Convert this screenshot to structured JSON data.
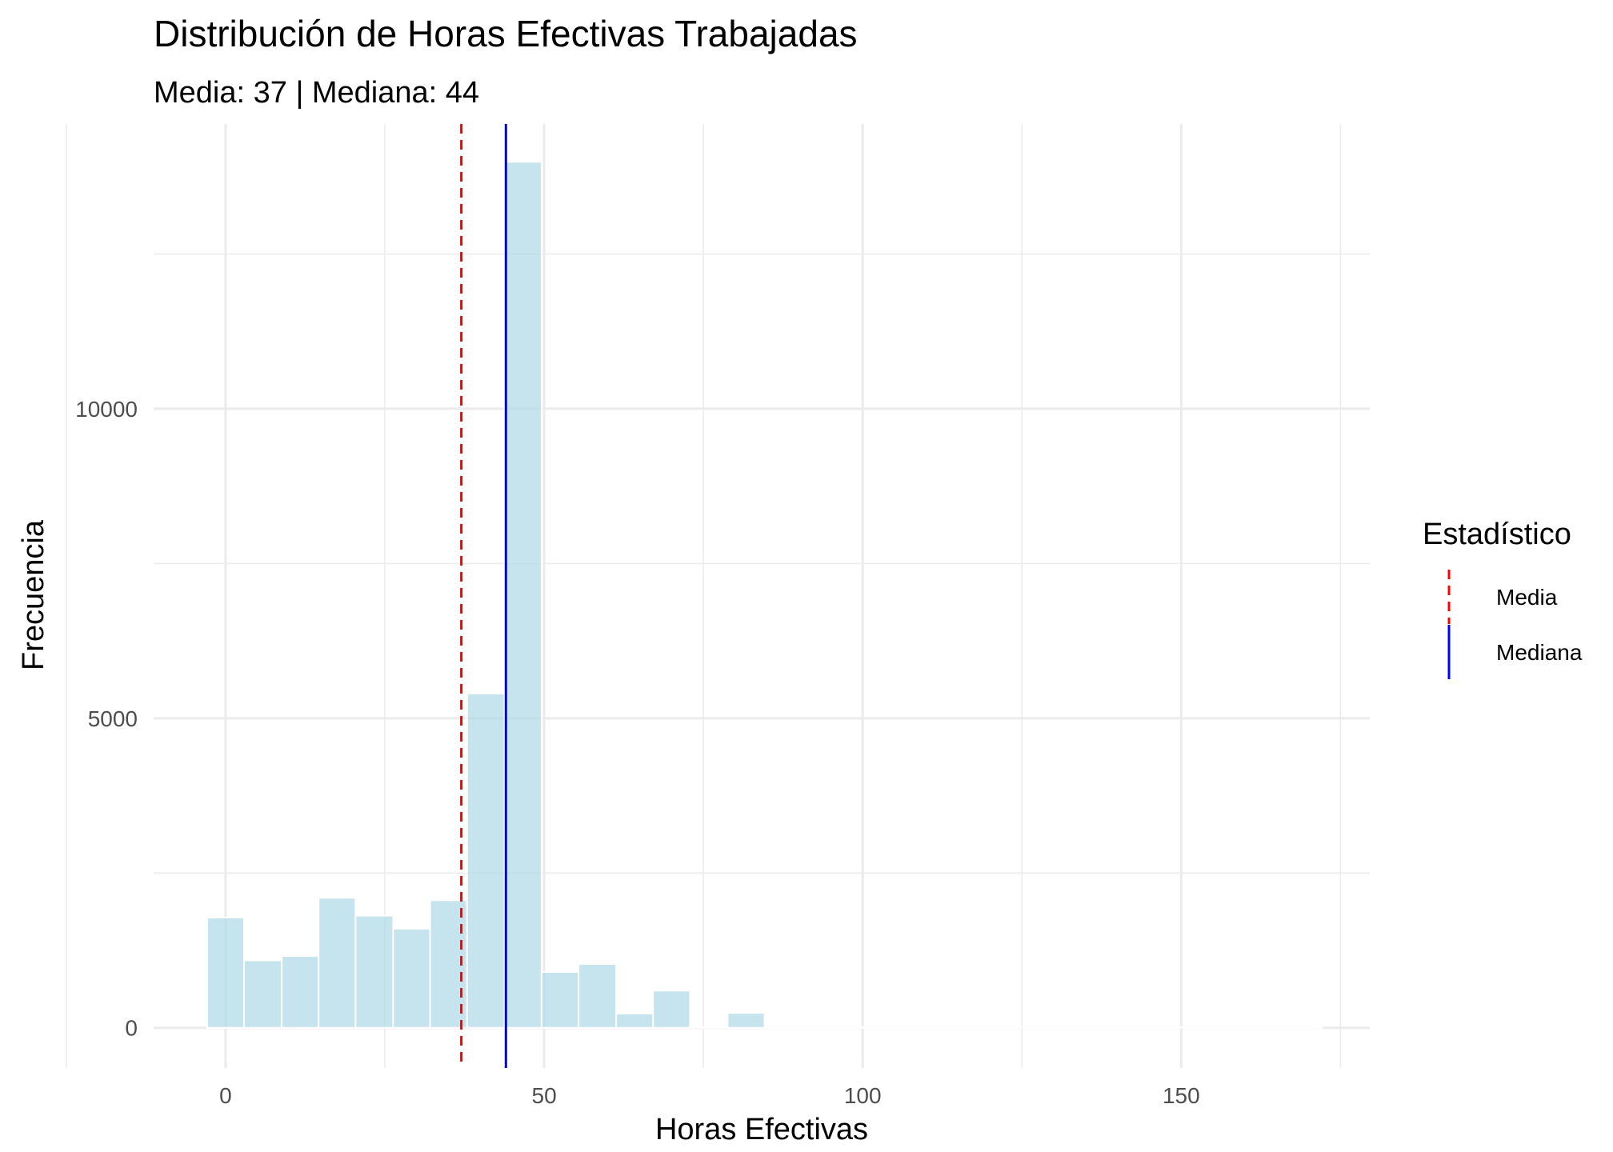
{
  "chart_data": {
    "type": "bar",
    "title": "Distribución de Horas Efectivas Trabajadas",
    "subtitle": "Media: 37 | Mediana: 44",
    "xlabel": "Horas Efectivas",
    "ylabel": "Frecuencia",
    "xlim": [
      -11.3,
      179.6
    ],
    "ylim": [
      -650,
      14600
    ],
    "x_ticks": [
      0,
      50,
      100,
      150
    ],
    "x_tick_labels": [
      "0",
      "50",
      "100",
      "150"
    ],
    "y_ticks": [
      0,
      5000,
      10000
    ],
    "y_tick_labels": [
      "0",
      "5000",
      "10000"
    ],
    "y_minor_ticks": [
      2500,
      7500,
      12500
    ],
    "grid": true,
    "bin_width": 5.83,
    "bins": [
      {
        "start": -2.9,
        "end": 2.9,
        "count": 1780
      },
      {
        "start": 2.9,
        "end": 8.8,
        "count": 1090
      },
      {
        "start": 8.8,
        "end": 14.6,
        "count": 1160
      },
      {
        "start": 14.6,
        "end": 20.4,
        "count": 2100
      },
      {
        "start": 20.4,
        "end": 26.3,
        "count": 1810
      },
      {
        "start": 26.3,
        "end": 32.1,
        "count": 1600
      },
      {
        "start": 32.1,
        "end": 37.9,
        "count": 2060
      },
      {
        "start": 37.9,
        "end": 43.8,
        "count": 5400
      },
      {
        "start": 43.8,
        "end": 49.6,
        "count": 13990
      },
      {
        "start": 49.6,
        "end": 55.4,
        "count": 900
      },
      {
        "start": 55.4,
        "end": 61.3,
        "count": 1030
      },
      {
        "start": 61.3,
        "end": 67.1,
        "count": 230
      },
      {
        "start": 67.1,
        "end": 72.9,
        "count": 600
      },
      {
        "start": 72.9,
        "end": 78.8,
        "count": 10
      },
      {
        "start": 78.8,
        "end": 84.6,
        "count": 240
      },
      {
        "start": 84.6,
        "end": 90.4,
        "count": 5
      },
      {
        "start": 90.4,
        "end": 96.3,
        "count": 5
      },
      {
        "start": 96.3,
        "end": 102.1,
        "count": 5
      },
      {
        "start": 102.1,
        "end": 107.9,
        "count": 5
      },
      {
        "start": 107.9,
        "end": 113.8,
        "count": 5
      },
      {
        "start": 113.8,
        "end": 119.6,
        "count": 5
      },
      {
        "start": 119.6,
        "end": 125.4,
        "count": 5
      },
      {
        "start": 125.4,
        "end": 131.3,
        "count": 5
      },
      {
        "start": 131.3,
        "end": 137.1,
        "count": 5
      },
      {
        "start": 137.1,
        "end": 142.9,
        "count": 5
      },
      {
        "start": 142.9,
        "end": 148.8,
        "count": 5
      },
      {
        "start": 148.8,
        "end": 154.6,
        "count": 5
      },
      {
        "start": 154.6,
        "end": 160.4,
        "count": 5
      },
      {
        "start": 160.4,
        "end": 166.3,
        "count": 5
      },
      {
        "start": 166.3,
        "end": 172.1,
        "count": 5
      }
    ],
    "bar_color": "#add8e6",
    "reference_lines": [
      {
        "name": "Media",
        "value": 37,
        "color": "#ff0000",
        "style": "dashed"
      },
      {
        "name": "Mediana",
        "value": 44,
        "color": "#0000ff",
        "style": "solid"
      }
    ],
    "legend": {
      "title": "Estadístico",
      "placement": "right",
      "entries": [
        "Media",
        "Mediana"
      ]
    }
  }
}
